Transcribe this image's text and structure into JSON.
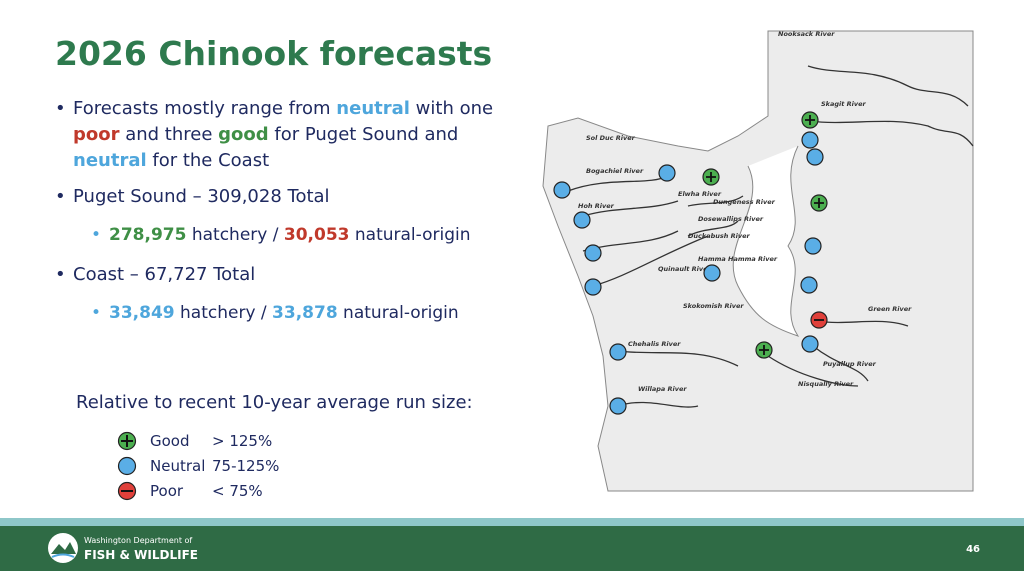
{
  "title": "2026 Chinook forecasts",
  "bullets": [
    {
      "runs": [
        {
          "text": "Forecasts mostly range from "
        },
        {
          "text": "neutral",
          "color": "#4ea6dc"
        },
        {
          "text": " with one "
        },
        {
          "text": "poor",
          "color": "#c0392b"
        },
        {
          "text": " and three "
        },
        {
          "text": "good",
          "color": "#3f8f46"
        },
        {
          "text": " for Puget Sound and "
        },
        {
          "text": "neutral",
          "color": "#4ea6dc"
        },
        {
          "text": " for the Coast"
        }
      ],
      "sub": []
    },
    {
      "runs": [
        {
          "text": "Puget Sound – 309,028 Total"
        }
      ],
      "sub": [
        {
          "runs": [
            {
              "text": "278,975",
              "color": "#3f8f46"
            },
            {
              "text": " hatchery / "
            },
            {
              "text": "30,053",
              "color": "#c0392b"
            },
            {
              "text": " natural-origin"
            }
          ]
        }
      ]
    },
    {
      "runs": [
        {
          "text": "Coast – 67,727 Total"
        }
      ],
      "sub": [
        {
          "runs": [
            {
              "text": "33,849",
              "color": "#4ea6dc"
            },
            {
              "text": " hatchery / "
            },
            {
              "text": "33,878",
              "color": "#4ea6dc"
            },
            {
              "text": " natural-origin"
            }
          ]
        }
      ]
    }
  ],
  "legend": {
    "heading": "Relative to recent 10-year average run size:",
    "items": [
      {
        "label": "Good",
        "range": "> 125%"
      },
      {
        "label": "Neutral",
        "range": "75-125%"
      },
      {
        "label": "Poor",
        "range": "< 75%"
      }
    ]
  },
  "map": {
    "rivers": [
      "Nooksack River",
      "Skagit River",
      "Sol Duc River",
      "Bogachiel River",
      "Hoh River",
      "Elwha River",
      "Dungeness River",
      "Dosewallips River",
      "Duckabush River",
      "Quinault River",
      "Hamma Hamma River",
      "Skokomish River",
      "Chehalis River",
      "Willapa River",
      "Green River",
      "Puyallup River",
      "Nisqually River"
    ]
  },
  "footer": {
    "agency_line1": "Washington Department of",
    "agency_line2": "FISH & WILDLIFE",
    "page": "46"
  }
}
